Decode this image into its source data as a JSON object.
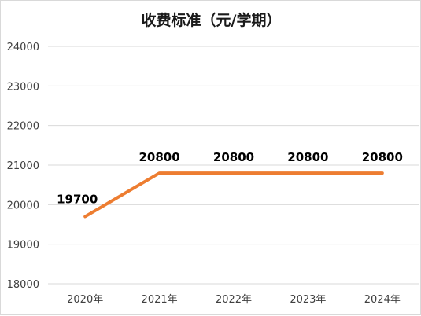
{
  "chart_data": {
    "type": "line",
    "title": "收费标准（元/学期）",
    "xlabel": "",
    "ylabel": "",
    "categories": [
      "2020年",
      "2021年",
      "2022年",
      "2023年",
      "2024年"
    ],
    "series": [
      {
        "values": [
          19700,
          20800,
          20800,
          20800,
          20800
        ]
      }
    ],
    "data_labels": [
      "19700",
      "20800",
      "20800",
      "20800",
      "20800"
    ],
    "ylim": [
      18000,
      24000
    ],
    "yticks": [
      "18000",
      "19000",
      "20000",
      "21000",
      "22000",
      "23000",
      "24000"
    ],
    "grid": true,
    "legend": "none",
    "line_color": "#ED7D31",
    "grid_color": "#D9D9D9"
  }
}
